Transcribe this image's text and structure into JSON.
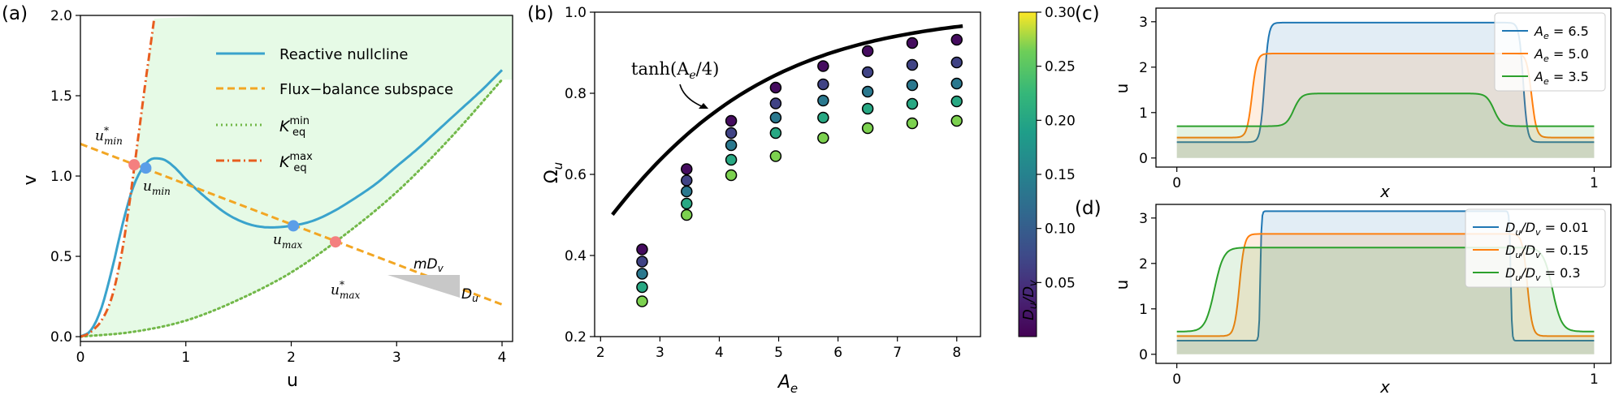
{
  "chart_data": [
    {
      "panel_label": "(a)",
      "type": "line",
      "xlabel": "u",
      "ylabel": "v",
      "xlim": [
        0,
        4.1
      ],
      "ylim": [
        -0.03,
        2.0
      ],
      "x_ticks": [
        0,
        1,
        2,
        3,
        4
      ],
      "y_ticks": [
        0.0,
        0.5,
        1.0,
        1.5,
        2.0
      ],
      "x_tick_labels": [
        "0",
        "1",
        "2",
        "3",
        "4"
      ],
      "y_tick_labels": [
        "0.0",
        "0.5",
        "1.0",
        "1.5",
        "2.0"
      ],
      "shaded_region": {
        "description": "area between K_eq^max and K_eq^min curves",
        "color": "#e6fae6"
      },
      "legend": {
        "placement": "upper center",
        "entries": [
          {
            "label": "Reactive nullcline",
            "color": "#3aa3cc",
            "style": "solid"
          },
          {
            "label": "Flux−balance subspace",
            "color": "#f2a623",
            "style": "dashed"
          },
          {
            "label_base": "K",
            "label_sub": "eq",
            "label_sup": "min",
            "color": "#72b849",
            "style": "dotted"
          },
          {
            "label_base": "K",
            "label_sub": "eq",
            "label_sup": "max",
            "color": "#e85d1f",
            "style": "dashdot"
          }
        ]
      },
      "series": [
        {
          "name": "Reactive nullcline",
          "color": "#3aa3cc",
          "x": [
            0.0,
            0.1,
            0.2,
            0.3,
            0.4,
            0.5,
            0.6,
            0.7,
            0.8,
            0.9,
            1.0,
            1.2,
            1.4,
            1.6,
            1.8,
            2.0,
            2.2,
            2.4,
            2.6,
            2.8,
            3.0,
            3.2,
            3.4,
            3.6,
            3.8,
            4.0
          ],
          "y": [
            0.0,
            0.04,
            0.18,
            0.42,
            0.7,
            0.93,
            1.06,
            1.11,
            1.1,
            1.05,
            0.98,
            0.86,
            0.76,
            0.7,
            0.68,
            0.69,
            0.72,
            0.78,
            0.86,
            0.95,
            1.06,
            1.17,
            1.29,
            1.41,
            1.53,
            1.66
          ]
        },
        {
          "name": "Flux−balance subspace",
          "color": "#f2a623",
          "x": [
            0.0,
            4.0
          ],
          "y": [
            1.2,
            0.2
          ]
        },
        {
          "name": "K_eq^min",
          "color": "#72b849",
          "x": [
            0.0,
            0.5,
            1.0,
            1.5,
            2.0,
            2.5,
            3.0,
            3.5,
            4.0
          ],
          "y": [
            0.0,
            0.03,
            0.1,
            0.23,
            0.4,
            0.63,
            0.9,
            1.23,
            1.6
          ]
        },
        {
          "name": "K_eq^max",
          "color": "#e85d1f",
          "x": [
            0.0,
            0.05,
            0.1,
            0.15,
            0.2,
            0.3,
            0.4,
            0.5,
            0.6,
            0.7
          ],
          "y": [
            0.0,
            0.01,
            0.03,
            0.06,
            0.1,
            0.25,
            0.55,
            1.0,
            1.5,
            1.98
          ]
        }
      ],
      "points": [
        {
          "label": "u*_min",
          "x": 0.51,
          "y": 1.07,
          "color": "#f47f7f"
        },
        {
          "label": "u_min",
          "x": 0.62,
          "y": 1.05,
          "color": "#5b9ee8"
        },
        {
          "label": "u_max",
          "x": 2.02,
          "y": 0.69,
          "color": "#5b9ee8"
        },
        {
          "label": "u*_max",
          "x": 2.42,
          "y": 0.59,
          "color": "#f47f7f"
        }
      ],
      "point_labels": [
        {
          "base": "u",
          "sup": "*",
          "sub": "min",
          "color": "#f47f7f"
        },
        {
          "base": "u",
          "sub": "min",
          "color": "#5b9ee8"
        },
        {
          "base": "u",
          "sub": "max",
          "color": "#5b9ee8"
        },
        {
          "base": "u",
          "sup": "*",
          "sub": "max",
          "color": "#f47f7f"
        }
      ],
      "slope_triangle": {
        "color": "#c8c8c8",
        "horizontal_label": "mD",
        "horizontal_label_sub": "v",
        "vertical_label": "D",
        "vertical_label_sub": "u"
      }
    },
    {
      "panel_label": "(b)",
      "type": "scatter",
      "xlabel": "A",
      "xlabel_sub": "e",
      "ylabel": "Ω",
      "ylabel_sub": "u",
      "xlim": [
        1.9,
        8.4
      ],
      "ylim": [
        0.2,
        1.0
      ],
      "x_ticks": [
        2,
        3,
        4,
        5,
        6,
        7,
        8
      ],
      "y_ticks": [
        0.2,
        0.4,
        0.6,
        0.8,
        1.0
      ],
      "x_tick_labels": [
        "2",
        "3",
        "4",
        "5",
        "6",
        "7",
        "8"
      ],
      "y_tick_labels": [
        "0.2",
        "0.4",
        "0.6",
        "0.8",
        "1.0"
      ],
      "curve": {
        "label": "tanh(A_e/4)",
        "label_base": "tanh(A",
        "label_sub": "e",
        "label_tail": "/4)",
        "x_range": [
          2.2,
          8.1
        ],
        "color": "#000000"
      },
      "colorbar": {
        "label": "D_u/D_v",
        "label_parts": [
          "D",
          "u",
          "/D",
          "v"
        ],
        "min": 0.0,
        "max": 0.3,
        "ticks": [
          0.05,
          0.1,
          0.15,
          0.2,
          0.25,
          0.3
        ],
        "tick_labels": [
          "0.05",
          "0.10",
          "0.15",
          "0.20",
          "0.25",
          "0.30"
        ],
        "colormap": "viridis"
      },
      "x": [
        2.7,
        3.45,
        4.2,
        4.95,
        5.75,
        6.5,
        7.25,
        8.0
      ],
      "series": [
        {
          "color_value": 0.01,
          "values": [
            0.415,
            0.613,
            0.732,
            0.814,
            0.867,
            0.904,
            0.924,
            0.932
          ]
        },
        {
          "color_value": 0.06,
          "values": [
            0.385,
            0.585,
            0.702,
            0.775,
            0.822,
            0.852,
            0.87,
            0.876
          ]
        },
        {
          "color_value": 0.12,
          "values": [
            0.355,
            0.558,
            0.672,
            0.74,
            0.782,
            0.804,
            0.82,
            0.824
          ]
        },
        {
          "color_value": 0.18,
          "values": [
            0.322,
            0.528,
            0.636,
            0.702,
            0.74,
            0.762,
            0.774,
            0.78
          ]
        },
        {
          "color_value": 0.24,
          "values": [
            0.287,
            0.5,
            0.598,
            0.645,
            0.69,
            0.714,
            0.726,
            0.732
          ]
        }
      ]
    },
    {
      "panel_label": "(c)",
      "type": "line",
      "xlabel": "x",
      "ylabel": "u",
      "xlim": [
        -0.05,
        1.04
      ],
      "ylim": [
        -0.2,
        3.3
      ],
      "x_ticks": [
        0,
        1
      ],
      "y_ticks": [
        0,
        1,
        2,
        3
      ],
      "x_tick_labels": [
        "0",
        "1"
      ],
      "y_tick_labels": [
        "0",
        "1",
        "2",
        "3"
      ],
      "legend": {
        "placement": "upper right"
      },
      "series": [
        {
          "name": "A_e = 6.5",
          "label_base": "A",
          "label_sub": "e",
          "label_value": " = 6.5",
          "color": "#1f77b4",
          "low": 0.35,
          "high": 2.98,
          "left_edge": 0.21,
          "right_edge": 0.83,
          "width": 0.01
        },
        {
          "name": "A_e = 5.0",
          "label_base": "A",
          "label_sub": "e",
          "label_value": " = 5.0",
          "color": "#ff7f0e",
          "low": 0.45,
          "high": 2.3,
          "left_edge": 0.18,
          "right_edge": 0.85,
          "width": 0.012
        },
        {
          "name": "A_e = 3.5",
          "label_base": "A",
          "label_sub": "e",
          "label_value": " = 3.5",
          "color": "#2ca02c",
          "low": 0.7,
          "high": 1.42,
          "left_edge": 0.28,
          "right_edge": 0.76,
          "width": 0.018
        }
      ]
    },
    {
      "panel_label": "(d)",
      "type": "line",
      "xlabel": "x",
      "ylabel": "u",
      "xlim": [
        -0.05,
        1.04
      ],
      "ylim": [
        -0.2,
        3.3
      ],
      "x_ticks": [
        0,
        1
      ],
      "y_ticks": [
        0,
        1,
        2,
        3
      ],
      "x_tick_labels": [
        "0",
        "1"
      ],
      "y_tick_labels": [
        "0",
        "1",
        "2",
        "3"
      ],
      "legend": {
        "placement": "upper right"
      },
      "series": [
        {
          "name": "D_u/D_v = 0.01",
          "label_parts": [
            "D",
            "u",
            "/D",
            "v"
          ],
          "label_value": " = 0.01",
          "color": "#1f77b4",
          "low": 0.3,
          "high": 3.15,
          "left_edge": 0.2,
          "right_edge": 0.8,
          "width": 0.003
        },
        {
          "name": "D_u/D_v = 0.15",
          "label_parts": [
            "D",
            "u",
            "/D",
            "v"
          ],
          "label_value": " = 0.15",
          "color": "#ff7f0e",
          "low": 0.4,
          "high": 2.65,
          "left_edge": 0.15,
          "right_edge": 0.84,
          "width": 0.012
        },
        {
          "name": "D_u/D_v = 0.3",
          "label_parts": [
            "D",
            "u",
            "/D",
            "v"
          ],
          "label_value": " = 0.3",
          "color": "#2ca02c",
          "low": 0.5,
          "high": 2.35,
          "left_edge": 0.09,
          "right_edge": 0.9,
          "width": 0.022
        }
      ]
    }
  ]
}
